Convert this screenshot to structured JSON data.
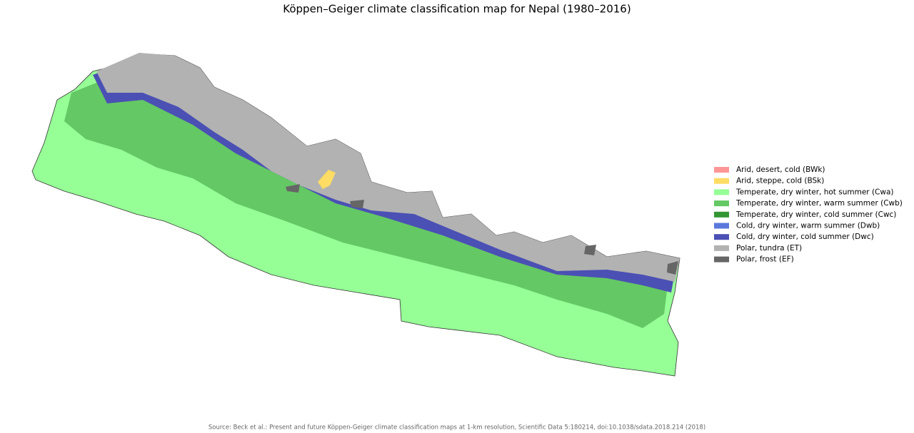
{
  "title": "Köppen–Geiger climate classification map for Nepal (1980–2016)",
  "legend": {
    "items": [
      {
        "label": "Arid, desert, cold (BWk)",
        "color": "#ff9696"
      },
      {
        "label": "Arid, steppe, cold (BSk)",
        "color": "#ffdc64"
      },
      {
        "label": "Temperate, dry winter, hot summer (Cwa)",
        "color": "#96ff96"
      },
      {
        "label": "Temperate, dry winter, warm summer (Cwb)",
        "color": "#64c864"
      },
      {
        "label": "Temperate, dry winter, cold summer (Cwc)",
        "color": "#329632"
      },
      {
        "label": "Cold, dry winter, warm summer (Dwb)",
        "color": "#5a78dc"
      },
      {
        "label": "Cold, dry winter, cold summer (Dwc)",
        "color": "#4b50b4"
      },
      {
        "label": "Polar, tundra (ET)",
        "color": "#b2b2b2"
      },
      {
        "label": "Polar, frost (EF)",
        "color": "#666666"
      }
    ]
  },
  "source": "Source: Beck et al.: Present and future Köppen-Geiger climate classification maps at 1-km resolution, Scientific Data 5:180214, doi:10.1038/sdata.2018.214 (2018)"
}
